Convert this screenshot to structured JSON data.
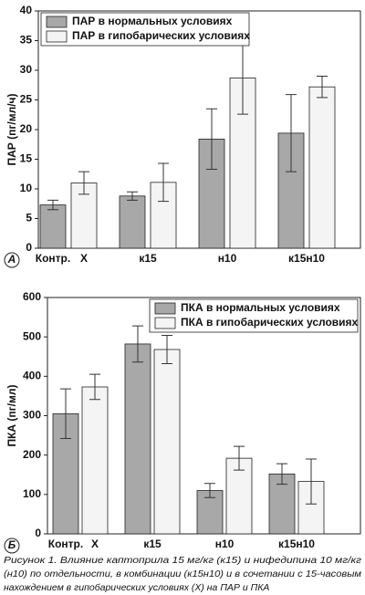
{
  "chart_data": [
    {
      "type": "bar",
      "panel": "А",
      "ylabel": "ПАР (пг/мл/ч)",
      "categories": [
        null,
        "к15",
        "н10",
        "к15н10"
      ],
      "bar_labels": [
        "Контр.",
        "Х"
      ],
      "series": [
        {
          "name": "ПАР в нормальных условиях",
          "color": "#a8a8a8",
          "values": [
            7.3,
            8.8,
            18.4,
            19.4
          ],
          "errors": [
            0.8,
            0.7,
            5.1,
            6.5
          ]
        },
        {
          "name": "ПАР в гипобарических условиях",
          "color": "#f4f4f4",
          "values": [
            11,
            11.1,
            28.7,
            27.2
          ],
          "errors": [
            1.9,
            3.2,
            6.1,
            1.8
          ]
        }
      ],
      "ylim": [
        0,
        40
      ],
      "yticks": [
        0,
        5,
        10,
        15,
        20,
        25,
        30,
        35,
        40
      ],
      "legend": "upper left"
    },
    {
      "type": "bar",
      "panel": "Б",
      "ylabel": "ПКА (пг/мл)",
      "categories": [
        null,
        "к15",
        "н10",
        "к15н10"
      ],
      "bar_labels": [
        "Контр.",
        "Х"
      ],
      "series": [
        {
          "name": "ПКА в нормальных условиях",
          "color": "#a8a8a8",
          "values": [
            305,
            482,
            110,
            152
          ],
          "errors": [
            63,
            46,
            18,
            26
          ]
        },
        {
          "name": "ПКА в гипобарических условиях",
          "color": "#f4f4f4",
          "values": [
            373,
            468,
            192,
            133
          ],
          "errors": [
            32,
            36,
            30,
            57
          ]
        }
      ],
      "ylim": [
        0,
        600
      ],
      "yticks": [
        0,
        100,
        200,
        300,
        400,
        500,
        600
      ],
      "legend": "upper right"
    }
  ],
  "caption": [
    "Рисунок 1. Влияние каптоприла 15 мг/кг (к15) и нифедипина 10 мг/кг",
    "(н10) по отдельности, в комбинации (к15н10) и в сочетании с 15-часовым",
    "нахождением в гипобарических условиях (Х) на ПАР и ПКА"
  ]
}
